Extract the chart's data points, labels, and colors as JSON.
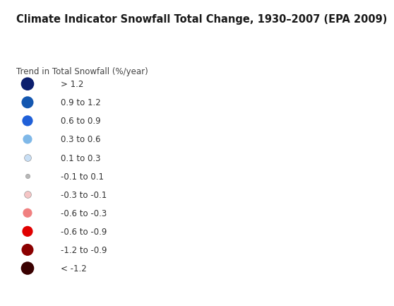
{
  "title": "Climate Indicator Snowfall Total Change, 1930–2007 (EPA 2009)",
  "subtitle": "Trend in Total Snowfall (%/year)",
  "background_color": "#ffffff",
  "legend_items": [
    {
      "label": "> 1.2",
      "color": "#0c1f6e",
      "size": 180
    },
    {
      "label": "0.9 to 1.2",
      "color": "#1457b0",
      "size": 150
    },
    {
      "label": "0.6 to 0.9",
      "color": "#2060d8",
      "size": 120
    },
    {
      "label": "0.3 to 0.6",
      "color": "#7fb8e8",
      "size": 90
    },
    {
      "label": "0.1 to 0.3",
      "color": "#c8dff5",
      "size": 50
    },
    {
      "label": "-0.1 to 0.1",
      "color": "#b8b8b8",
      "size": 20
    },
    {
      "label": "-0.3 to -0.1",
      "color": "#f5c5c5",
      "size": 50
    },
    {
      "label": "-0.6 to -0.3",
      "color": "#f08080",
      "size": 90
    },
    {
      "label": "-0.6 to -0.9",
      "color": "#e00000",
      "size": 120
    },
    {
      "label": "-1.2 to -0.9",
      "color": "#8b0000",
      "size": 150
    },
    {
      "label": "< -1.2",
      "color": "#3a0000",
      "size": 180
    }
  ],
  "title_fontsize": 10.5,
  "subtitle_fontsize": 8.5,
  "label_fontsize": 8.5,
  "title_color": "#1a1a1a",
  "label_color": "#333333",
  "subtitle_color": "#444444"
}
